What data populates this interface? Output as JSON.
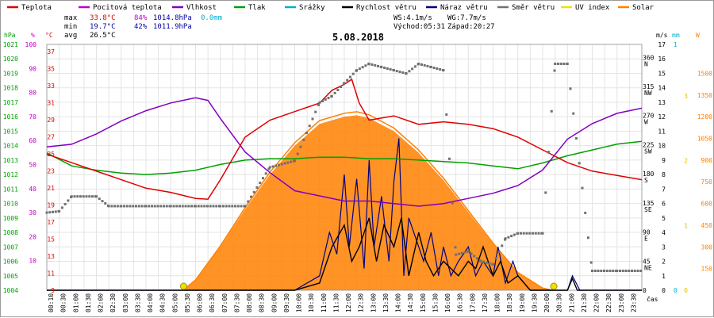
{
  "chart_data": {
    "type": "line",
    "title": "5.08.2018",
    "legend": [
      {
        "name": "Teplota",
        "color": "#e00000"
      },
      {
        "name": "Pocitová teplota",
        "color": "#c000c0"
      },
      {
        "name": "Vlhkost",
        "color": "#8000c0"
      },
      {
        "name": "Tlak",
        "color": "#00a000"
      },
      {
        "name": "Srážky",
        "color": "#00b0d0"
      },
      {
        "name": "Rychlost větru",
        "color": "#000000"
      },
      {
        "name": "Náraz větru",
        "color": "#000080"
      },
      {
        "name": "Směr větru",
        "color": "#707070"
      },
      {
        "name": "UV index",
        "color": "#f0e000"
      },
      {
        "name": "Solar",
        "color": "#ff8000"
      }
    ],
    "stats": {
      "max_label": "max",
      "min_label": "min",
      "avg_label": "avg",
      "max_temp": "33.8°C",
      "max_hum": "84%",
      "max_press": "1014.8hPa",
      "max_rain": "0.0mm",
      "min_temp": "19.7°C",
      "min_hum": "42%",
      "min_press": "1011.9hPa",
      "avg_temp": "26.5°C",
      "ws": "WS:4.1m/s",
      "wg": "WG:7.7m/s",
      "sunrise": "Východ:05:31",
      "sunset": "Západ:20:27"
    },
    "xlabel": "čas",
    "x_ticks": [
      "00:10",
      "00:30",
      "01:00",
      "01:30",
      "02:00",
      "02:30",
      "03:00",
      "03:30",
      "04:00",
      "04:30",
      "05:00",
      "05:30",
      "06:00",
      "06:30",
      "07:00",
      "07:30",
      "08:00",
      "08:30",
      "09:00",
      "09:30",
      "10:00",
      "10:30",
      "11:00",
      "11:30",
      "12:00",
      "12:30",
      "13:00",
      "13:30",
      "14:00",
      "14:30",
      "15:00",
      "15:30",
      "16:00",
      "16:30",
      "17:00",
      "17:30",
      "18:00",
      "18:30",
      "19:00",
      "19:30",
      "20:00",
      "20:30",
      "21:00",
      "21:30",
      "22:00",
      "22:30",
      "23:00",
      "23:30"
    ],
    "axes": {
      "pressure": {
        "unit": "hPa",
        "color": "#00a000",
        "ticks": [
          1021,
          1020,
          1019,
          1018,
          1017,
          1016,
          1015,
          1014,
          1013,
          1012,
          1011,
          1010,
          1009,
          1008,
          1007,
          1006,
          1005,
          1004
        ]
      },
      "humidity": {
        "unit": "%",
        "color": "#c000c0",
        "ticks": [
          100,
          90,
          80,
          70,
          60,
          50,
          40,
          30,
          20,
          10
        ]
      },
      "temperature": {
        "unit": "°C",
        "color": "#e00000",
        "ticks": [
          37,
          35,
          33,
          31,
          29,
          27,
          25,
          23,
          21,
          19,
          17,
          15,
          13,
          11,
          9
        ]
      },
      "wind_speed": {
        "unit": "m/s",
        "color": "#000000",
        "ticks": [
          17,
          16,
          15,
          14,
          13,
          12,
          11,
          10,
          9,
          8,
          7,
          6,
          5,
          4,
          3,
          2,
          1,
          0
        ]
      },
      "wind_dir": {
        "color": "#707070",
        "ticks": [
          {
            "deg": "360",
            "dir": "N"
          },
          {
            "deg": "315",
            "dir": "NW"
          },
          {
            "deg": "270",
            "dir": "W"
          },
          {
            "deg": "225",
            "dir": "SW"
          },
          {
            "deg": "180",
            "dir": "S"
          },
          {
            "deg": "135",
            "dir": "SE"
          },
          {
            "deg": "90",
            "dir": "E"
          },
          {
            "deg": "45",
            "dir": "NE"
          },
          {
            "deg": "0",
            "dir": ""
          }
        ]
      },
      "rain": {
        "unit": "mm",
        "color": "#00b0d0",
        "ticks": [
          1,
          0
        ]
      },
      "uv": {
        "color": "#e0c000",
        "ticks": [
          3,
          2,
          1,
          0
        ]
      },
      "solar": {
        "unit": "W",
        "color": "#ff8000",
        "ticks": [
          1500,
          1350,
          1200,
          1050,
          900,
          750,
          600,
          450,
          300,
          150
        ]
      }
    },
    "series": [
      {
        "name": "Teplota",
        "x": [
          0,
          1,
          2,
          3,
          4,
          5,
          6,
          6.5,
          7,
          8,
          9,
          10,
          11,
          11.5,
          12,
          12.3,
          12.6,
          13,
          14,
          15,
          16,
          17,
          18,
          19,
          20,
          21,
          22,
          23,
          24
        ],
        "y": [
          25,
          24,
          23,
          22,
          21,
          20.5,
          19.8,
          19.7,
          22,
          27,
          29,
          30,
          31,
          32.5,
          33.2,
          33.8,
          31,
          29,
          29.5,
          28.5,
          28.8,
          28.5,
          28,
          27,
          25.5,
          24,
          23,
          22.5,
          22
        ]
      },
      {
        "name": "Vlhkost",
        "x": [
          0,
          1,
          2,
          3,
          4,
          5,
          6,
          6.5,
          7,
          8,
          9,
          10,
          11,
          12,
          13,
          14,
          15,
          16,
          17,
          18,
          19,
          20,
          21,
          22,
          23,
          24
        ],
        "y": [
          65,
          66,
          70,
          75,
          79,
          82,
          84,
          83,
          76,
          63,
          55,
          48,
          46,
          44,
          44,
          43,
          42,
          43,
          45,
          47,
          50,
          56,
          68,
          74,
          78,
          80
        ]
      },
      {
        "name": "Tlak",
        "x": [
          0,
          1,
          2,
          3,
          4,
          5,
          6,
          7,
          8,
          9,
          10,
          11,
          12,
          13,
          14,
          15,
          16,
          17,
          18,
          19,
          20,
          21,
          22,
          23,
          24
        ],
        "y": [
          1013.5,
          1012.6,
          1012.3,
          1012.1,
          1012.0,
          1012.1,
          1012.3,
          1012.7,
          1013.0,
          1013.1,
          1013.1,
          1013.2,
          1013.2,
          1013.1,
          1013.1,
          1013.0,
          1012.9,
          1012.8,
          1012.6,
          1012.4,
          1012.8,
          1013.3,
          1013.7,
          1014.1,
          1014.3
        ]
      },
      {
        "name": "Směr větru",
        "x": [
          0,
          0.5,
          1,
          2,
          2.5,
          3,
          4,
          5,
          6,
          7,
          8,
          9,
          10,
          11,
          11.5,
          12,
          12.5,
          13,
          13.5,
          14,
          14.5,
          15,
          15.5,
          16,
          16.5,
          17,
          17.5,
          18,
          18.5,
          19,
          20,
          20.5,
          21,
          22,
          23,
          24
        ],
        "y": [
          120,
          122,
          145,
          145,
          130,
          130,
          130,
          130,
          130,
          130,
          130,
          190,
          200,
          290,
          300,
          320,
          340,
          350,
          345,
          340,
          335,
          350,
          345,
          340,
          55,
          60,
          45,
          40,
          80,
          88,
          88,
          350,
          350,
          30,
          30,
          30
        ]
      },
      {
        "name": "Rychlost větru",
        "x": [
          0,
          5,
          6,
          7,
          8,
          9,
          10,
          11,
          11.5,
          12,
          12.3,
          12.6,
          13,
          13.3,
          13.6,
          14,
          14.3,
          14.6,
          15,
          15.3,
          15.6,
          16,
          16.3,
          16.6,
          17,
          17.3,
          17.6,
          18,
          18.3,
          18.6,
          19,
          19.5,
          20,
          20.5,
          21,
          21.2,
          21.4,
          21.6,
          22,
          23,
          24
        ],
        "y": [
          0,
          0,
          0,
          0,
          0,
          0,
          0,
          0.5,
          3,
          4.5,
          2,
          3,
          5,
          2,
          4.5,
          3,
          5,
          1,
          4,
          2,
          1,
          2,
          1.5,
          1,
          2,
          1.5,
          3,
          1,
          2,
          0.5,
          1,
          0,
          0,
          0,
          0,
          0.8,
          0,
          0,
          0,
          0,
          0
        ]
      },
      {
        "name": "Náraz větru",
        "x": [
          0,
          5,
          6,
          7,
          8,
          9,
          10,
          11,
          11.4,
          11.7,
          12,
          12.2,
          12.5,
          12.8,
          13,
          13.2,
          13.5,
          13.8,
          14,
          14.2,
          14.4,
          14.6,
          15,
          15.2,
          15.5,
          15.8,
          16,
          16.3,
          16.6,
          17,
          17.3,
          17.6,
          18,
          18.2,
          18.5,
          18.8,
          19,
          19.5,
          20,
          21,
          21.2,
          21.5,
          22,
          23,
          24
        ],
        "y": [
          0,
          0,
          0,
          0,
          0,
          0,
          0,
          1,
          4,
          2.5,
          8,
          3,
          7.7,
          1.5,
          9,
          3,
          6.5,
          2,
          7.5,
          10.5,
          1,
          5,
          3,
          2,
          4,
          1,
          3,
          1,
          2,
          3,
          1,
          2,
          1,
          3,
          0.5,
          2,
          1,
          0,
          0,
          0,
          1,
          0,
          0,
          0,
          0
        ]
      },
      {
        "name": "Solar",
        "x": [
          5.5,
          6,
          7,
          8,
          9,
          10,
          11,
          12,
          12.5,
          13,
          14,
          15,
          16,
          17,
          18,
          19,
          20,
          20.4
        ],
        "y": [
          0,
          70,
          300,
          560,
          800,
          1000,
          1150,
          1200,
          1210,
          1190,
          1100,
          950,
          760,
          540,
          320,
          120,
          15,
          0
        ]
      },
      {
        "name": "UV index",
        "markers_x": [
          "05:31",
          "20:27"
        ],
        "y": [
          0,
          0
        ]
      }
    ]
  }
}
